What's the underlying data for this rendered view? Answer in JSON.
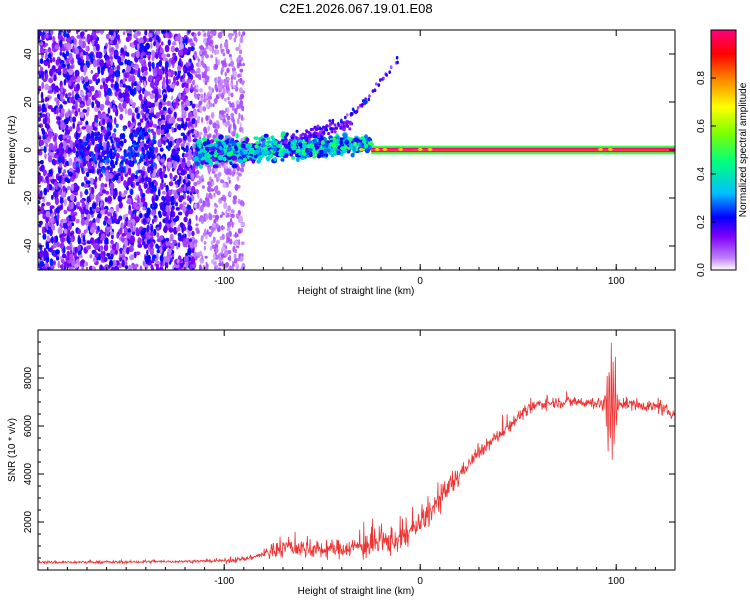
{
  "title": "C2E1.2026.067.19.01.E08",
  "chart_data": [
    {
      "type": "heatmap",
      "xlabel": "Height of straight line (km)",
      "ylabel": "Frequency (Hz)",
      "xlim": [
        -195,
        130
      ],
      "ylim": [
        -50,
        50
      ],
      "xticks": [
        -100,
        0,
        100
      ],
      "yticks": [
        -40,
        -20,
        0,
        20,
        40
      ],
      "xtick_labels": [
        "-100",
        "0",
        "100"
      ],
      "ytick_labels": [
        "-40",
        "-20",
        "0",
        "20",
        "40"
      ],
      "colorbar": {
        "label": "Normalized spectral amplitude",
        "range": [
          0,
          1
        ],
        "ticks": [
          0,
          0.2,
          0.4,
          0.6,
          0.8
        ],
        "tick_labels": [
          "0.0",
          "0.2",
          "0.4",
          "0.6",
          "0.8"
        ],
        "colors": [
          "#ffffff",
          "#c07fff",
          "#7f00ff",
          "#0000ff",
          "#00bfff",
          "#00ff7f",
          "#7fff00",
          "#ffff00",
          "#ff7f00",
          "#ff0000",
          "#ff007f"
        ]
      },
      "features": {
        "noise_region_x": [
          -195,
          -90
        ],
        "dense_noise_x": [
          -195,
          -115
        ],
        "carrier_line": {
          "x": [
            -25,
            130
          ],
          "freq": 0,
          "amplitude": 1.0
        },
        "dispersed_signal": {
          "x": [
            -115,
            -25
          ],
          "freq_range": [
            -2,
            3
          ],
          "amplitude": 0.35
        },
        "drift_track": {
          "points": [
            [
              -50,
              8
            ],
            [
              -35,
              15
            ],
            [
              -28,
              20
            ],
            [
              -20,
              30
            ],
            [
              -10,
              38
            ]
          ]
        }
      }
    },
    {
      "type": "line",
      "xlabel": "Height of straight line (km)",
      "ylabel": "SNR (10 * v/v)",
      "xlim": [
        -195,
        130
      ],
      "ylim": [
        0,
        10000
      ],
      "xticks": [
        -100,
        0,
        100
      ],
      "yticks": [
        2000,
        4000,
        6000,
        8000
      ],
      "xtick_labels": [
        "-100",
        "0",
        "100"
      ],
      "ytick_labels": [
        "2000",
        "4000",
        "6000",
        "8000"
      ],
      "color": "#ee3333",
      "profile": {
        "x": [
          -195,
          -150,
          -100,
          -90,
          -80,
          -70,
          -60,
          -50,
          -40,
          -30,
          -20,
          -10,
          0,
          10,
          20,
          30,
          40,
          50,
          60,
          70,
          80,
          90,
          95,
          100,
          110,
          120,
          130
        ],
        "y": [
          320,
          330,
          380,
          450,
          650,
          950,
          900,
          830,
          900,
          1000,
          1100,
          1300,
          1900,
          2900,
          4000,
          4900,
          5600,
          6400,
          6900,
          7000,
          7000,
          6950,
          6900,
          6950,
          6900,
          6800,
          6500
        ]
      }
    }
  ]
}
